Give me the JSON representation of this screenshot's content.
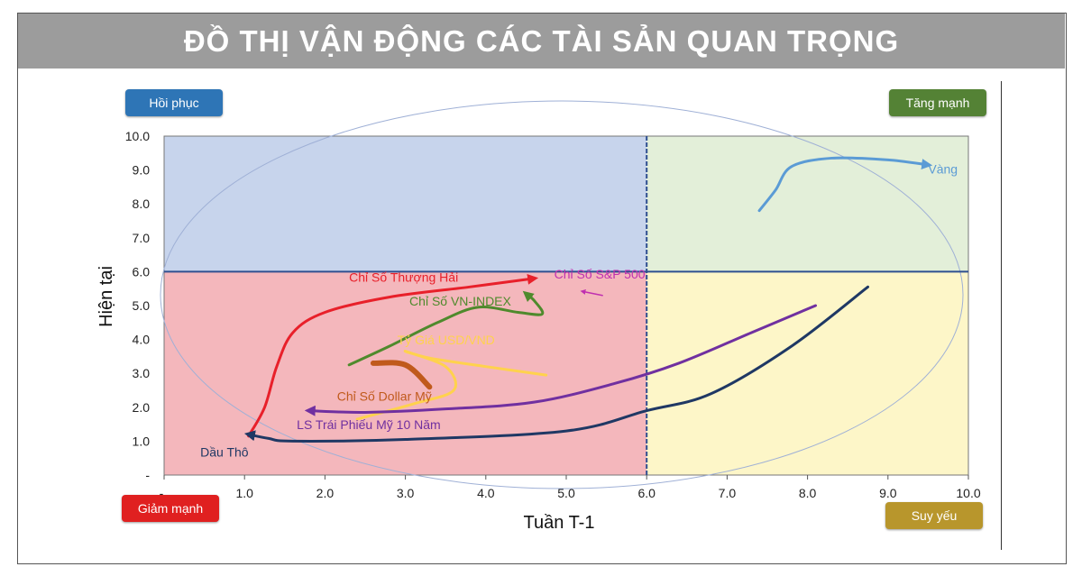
{
  "header": {
    "title": "ĐỒ THỊ VẬN ĐỘNG CÁC TÀI SẢN QUAN TRỌNG"
  },
  "quadrants": {
    "top_left": {
      "label": "Hồi phục",
      "color": "#2e75b6",
      "fill": "#c7d4ec"
    },
    "top_right": {
      "label": "Tăng mạnh",
      "color": "#548235",
      "fill": "#e3efd9"
    },
    "bottom_left": {
      "label": "Giảm mạnh",
      "color": "#e02020",
      "fill": "#f4b7bc"
    },
    "bottom_right": {
      "label": "Suy yếu",
      "color": "#b8962c",
      "fill": "#fdf6c8"
    }
  },
  "chart_data": {
    "type": "line",
    "xlabel": "Tuần T-1",
    "ylabel": "Hiện tại",
    "xlim": [
      0,
      10
    ],
    "ylim": [
      0,
      10
    ],
    "x_ticks": [
      "-",
      "1.0",
      "2.0",
      "3.0",
      "4.0",
      "5.0",
      "6.0",
      "7.0",
      "8.0",
      "9.0",
      "10.0"
    ],
    "y_ticks": [
      "-",
      "1.0",
      "2.0",
      "3.0",
      "4.0",
      "5.0",
      "6.0",
      "7.0",
      "8.0",
      "9.0",
      "10.0"
    ],
    "x_tick_values": [
      0,
      1,
      2,
      3,
      4,
      5,
      6,
      7,
      8,
      9,
      10
    ],
    "y_tick_values": [
      0,
      1,
      2,
      3,
      4,
      5,
      6,
      7,
      8,
      9,
      10
    ],
    "quadrant_split": {
      "x": 6,
      "y": 6
    },
    "series": [
      {
        "name": "Vàng",
        "color": "#5b9bd5",
        "width": 3,
        "arrow": true,
        "points": [
          [
            7.4,
            7.8
          ],
          [
            7.6,
            8.4
          ],
          [
            7.8,
            9.1
          ],
          [
            8.3,
            9.35
          ],
          [
            9.0,
            9.3
          ],
          [
            9.5,
            9.15
          ]
        ],
        "label_at": [
          9.5,
          8.9
        ]
      },
      {
        "name": "Chỉ Số Thượng Hải",
        "color": "#e8202a",
        "width": 3,
        "arrow": true,
        "points": [
          [
            1.05,
            1.15
          ],
          [
            1.25,
            2.0
          ],
          [
            1.4,
            3.2
          ],
          [
            1.6,
            4.2
          ],
          [
            2.0,
            4.8
          ],
          [
            2.8,
            5.25
          ],
          [
            3.8,
            5.55
          ],
          [
            4.6,
            5.8
          ]
        ],
        "label_at": [
          2.3,
          5.7
        ]
      },
      {
        "name": "Chỉ Số VN-INDEX",
        "color": "#4f8a2c",
        "width": 3,
        "arrow": true,
        "points": [
          [
            2.3,
            3.25
          ],
          [
            2.8,
            3.8
          ],
          [
            3.4,
            4.5
          ],
          [
            3.9,
            4.95
          ],
          [
            4.4,
            4.8
          ],
          [
            4.7,
            4.75
          ],
          [
            4.6,
            5.15
          ],
          [
            4.5,
            5.35
          ]
        ],
        "label_at": [
          3.05,
          5.0
        ]
      },
      {
        "name": "Chỉ Số S&P 500",
        "color": "#c030b0",
        "width": 1.5,
        "arrow": true,
        "points": [
          [
            5.45,
            5.3
          ],
          [
            5.2,
            5.42
          ]
        ],
        "label_at": [
          4.85,
          5.8
        ]
      },
      {
        "name": "Tỷ Giá USD/VND",
        "color": "#ffd24d",
        "width": 3,
        "arrow": false,
        "points": [
          [
            4.75,
            2.95
          ],
          [
            4.0,
            3.2
          ],
          [
            3.3,
            3.45
          ],
          [
            3.0,
            3.65
          ],
          [
            3.5,
            3.2
          ],
          [
            3.6,
            2.5
          ],
          [
            3.1,
            2.1
          ],
          [
            2.4,
            1.65
          ]
        ],
        "label_at": [
          2.9,
          3.85
        ]
      },
      {
        "name": "",
        "color": "#c05a1c",
        "width": 6,
        "arrow": false,
        "points": [
          [
            2.6,
            3.3
          ],
          [
            3.0,
            3.25
          ],
          [
            3.3,
            2.6
          ]
        ],
        "label_at": null
      },
      {
        "name": "Chỉ Số Dollar Mỹ",
        "color": "#c05a1c",
        "width": 0,
        "arrow": false,
        "points": [],
        "label_at": [
          2.15,
          2.2
        ]
      },
      {
        "name": "LS Trái Phiếu Mỹ 10 Năm",
        "color": "#7030a0",
        "width": 3,
        "arrow": true,
        "points": [
          [
            8.1,
            5.0
          ],
          [
            7.3,
            4.2
          ],
          [
            6.4,
            3.3
          ],
          [
            5.6,
            2.7
          ],
          [
            4.6,
            2.15
          ],
          [
            3.5,
            1.95
          ],
          [
            2.5,
            1.85
          ],
          [
            1.8,
            1.9
          ]
        ],
        "label_at": [
          1.65,
          1.35
        ]
      },
      {
        "name": "Dầu Thô",
        "color": "#1f3864",
        "width": 3,
        "arrow": true,
        "points": [
          [
            8.75,
            5.55
          ],
          [
            7.8,
            3.8
          ],
          [
            6.8,
            2.4
          ],
          [
            6.0,
            1.9
          ],
          [
            5.0,
            1.3
          ],
          [
            3.0,
            1.05
          ],
          [
            1.6,
            1.0
          ],
          [
            1.3,
            1.08
          ],
          [
            1.05,
            1.2
          ]
        ],
        "label_at": [
          0.45,
          0.55
        ]
      }
    ]
  }
}
